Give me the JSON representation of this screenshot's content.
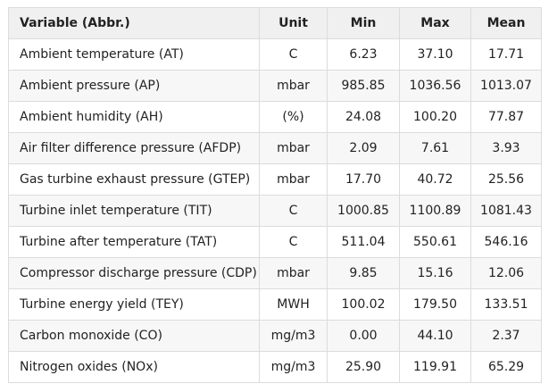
{
  "table": {
    "headers": [
      "Variable (Abbr.)",
      "Unit",
      "Min",
      "Max",
      "Mean"
    ],
    "rows": [
      [
        "Ambient temperature (AT)",
        "C",
        "6.23",
        "37.10",
        "17.71"
      ],
      [
        "Ambient pressure (AP)",
        "mbar",
        "985.85",
        "1036.56",
        "1013.07"
      ],
      [
        "Ambient humidity (AH)",
        "(%)",
        "24.08",
        "100.20",
        "77.87"
      ],
      [
        "Air filter difference pressure (AFDP)",
        "mbar",
        "2.09",
        "7.61",
        "3.93"
      ],
      [
        "Gas turbine exhaust pressure (GTEP)",
        "mbar",
        "17.70",
        "40.72",
        "25.56"
      ],
      [
        "Turbine inlet temperature (TIT)",
        "C",
        "1000.85",
        "1100.89",
        "1081.43"
      ],
      [
        "Turbine after temperature (TAT)",
        "C",
        "511.04",
        "550.61",
        "546.16"
      ],
      [
        "Compressor discharge pressure (CDP)",
        "mbar",
        "9.85",
        "15.16",
        "12.06"
      ],
      [
        "Turbine energy yield (TEY)",
        "MWH",
        "100.02",
        "179.50",
        "133.51"
      ],
      [
        "Carbon monoxide (CO)",
        "mg/m3",
        "0.00",
        "44.10",
        "2.37"
      ],
      [
        "Nitrogen oxides (NOx)",
        "mg/m3",
        "25.90",
        "119.91",
        "65.29"
      ]
    ]
  }
}
